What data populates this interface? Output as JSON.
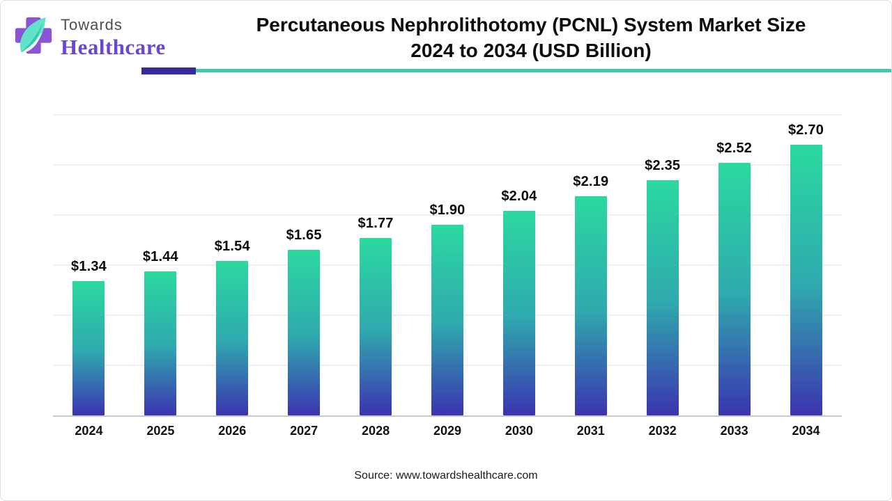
{
  "header": {
    "logo_line1": "Towards",
    "logo_line2": "Healthcare",
    "title_line1": "Percutaneous Nephrolithotomy (PCNL) System Market Size",
    "title_line2": "2024 to 2034 (USD Billion)"
  },
  "chart_data": {
    "type": "bar",
    "title": "Percutaneous Nephrolithotomy (PCNL) System Market Size 2024 to 2034 (USD Billion)",
    "categories": [
      "2024",
      "2025",
      "2026",
      "2027",
      "2028",
      "2029",
      "2030",
      "2031",
      "2032",
      "2033",
      "2034"
    ],
    "values": [
      1.34,
      1.44,
      1.54,
      1.65,
      1.77,
      1.9,
      2.04,
      2.19,
      2.35,
      2.52,
      2.7
    ],
    "value_labels": [
      "$1.34",
      "$1.44",
      "$1.54",
      "$1.65",
      "$1.77",
      "$1.90",
      "$2.04",
      "$2.19",
      "$2.35",
      "$2.52",
      "$2.70"
    ],
    "xlabel": "",
    "ylabel": "",
    "unit": "USD Billion",
    "ylim": [
      0,
      3.0
    ],
    "gridline_step": 0.5,
    "grid": "horizontal-only",
    "legend_position": "none",
    "bar_gradient_top": "#2bd9a0",
    "bar_gradient_mid": "#2fa9ae",
    "bar_gradient_bottom": "#3b34b0"
  },
  "footer": {
    "source": "Source: www.towardshealthcare.com"
  },
  "colors": {
    "rule_purple": "#372a9d",
    "rule_teal": "#3fc9b0",
    "logo_purple": "#6b46d0",
    "logo_gray": "#4d4d4d",
    "cross_purple": "#8a55d4",
    "leaf_teal_light": "#62e3c9",
    "leaf_teal_dark": "#2fc9ad"
  }
}
